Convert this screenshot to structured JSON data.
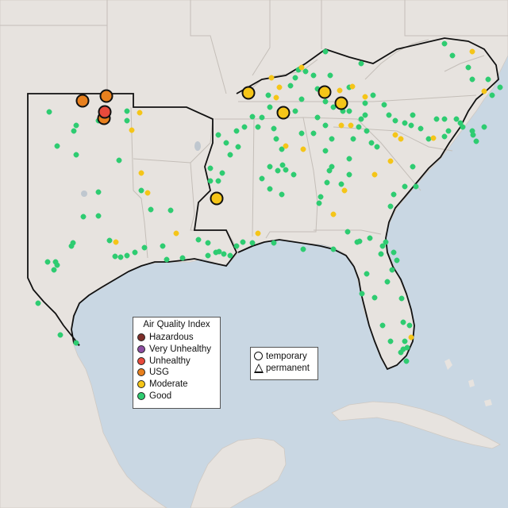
{
  "legend": {
    "title": "Air Quality Index",
    "categories": [
      {
        "label": "Hazardous",
        "color": "#7e2f2a"
      },
      {
        "label": "Very Unhealthy",
        "color": "#8e4fa3"
      },
      {
        "label": "Unhealthy",
        "color": "#e84a3c"
      },
      {
        "label": "USG",
        "color": "#e8801e"
      },
      {
        "label": "Moderate",
        "color": "#f5c518"
      },
      {
        "label": "Good",
        "color": "#2ecc71"
      }
    ]
  },
  "monitor_types": {
    "temporary": "temporary",
    "permanent": "permanent"
  }
}
